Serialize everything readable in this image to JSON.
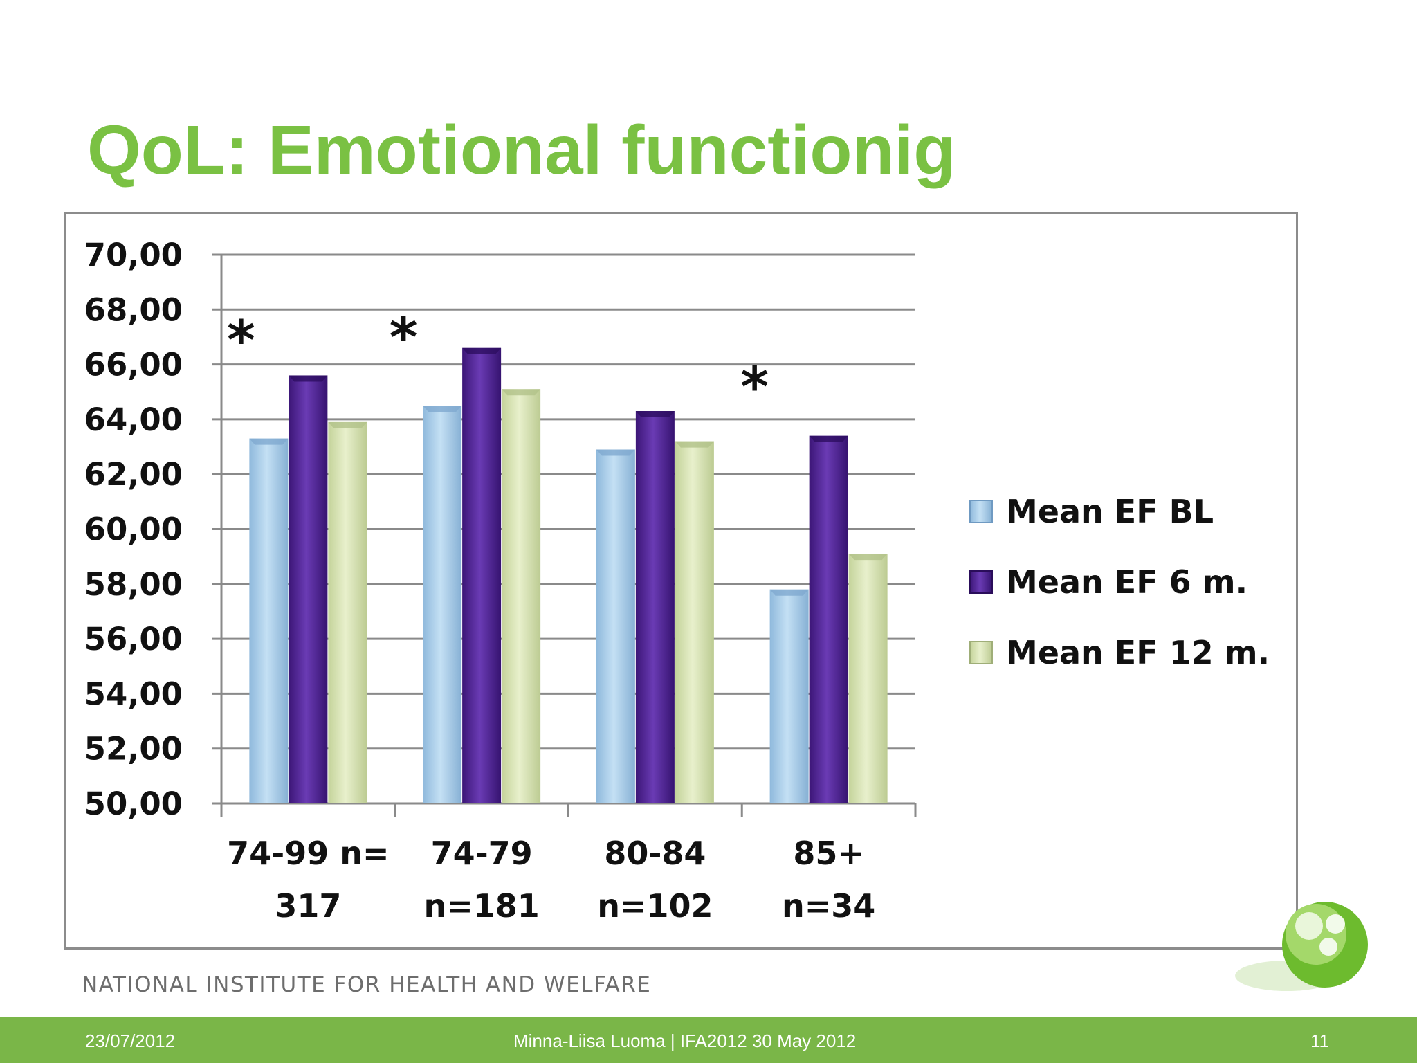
{
  "slide": {
    "title": "QoL: Emotional functionig",
    "institute": "NATIONAL INSTITUTE FOR HEALTH AND WELFARE"
  },
  "footer": {
    "date": "23/07/2012",
    "center": "Minna-Liisa Luoma |  IFA2012  30 May  2012",
    "page": "11"
  },
  "colors": {
    "title": "#7ac143",
    "footer_bar": "#7ab648",
    "series": [
      "#a9cde8",
      "#4b1f8f",
      "#d6e2b3"
    ]
  },
  "chart_data": {
    "type": "bar",
    "title": "",
    "xlabel": "",
    "ylabel": "",
    "ylim": [
      50,
      70
    ],
    "y_ticks": [
      "70,00",
      "68,00",
      "66,00",
      "64,00",
      "62,00",
      "60,00",
      "58,00",
      "56,00",
      "54,00",
      "52,00",
      "50,00"
    ],
    "grid": true,
    "legend_position": "right",
    "categories": [
      [
        "74-99 n=",
        "317"
      ],
      [
        "74-79",
        "n=181"
      ],
      [
        "80-84",
        "n=102"
      ],
      [
        "85+",
        "n=34"
      ]
    ],
    "series": [
      {
        "name": "Mean EF BL",
        "values": [
          63.3,
          64.5,
          62.9,
          57.8
        ]
      },
      {
        "name": "Mean EF  6 m.",
        "values": [
          65.6,
          66.6,
          64.3,
          63.4
        ]
      },
      {
        "name": "Mean EF  12 m.",
        "values": [
          63.9,
          65.1,
          63.2,
          59.1
        ]
      }
    ],
    "annotations": [
      {
        "text": "*",
        "category_index": 0
      },
      {
        "text": "*",
        "category_index": 1
      },
      {
        "text": "*",
        "category_index": 3
      }
    ]
  }
}
